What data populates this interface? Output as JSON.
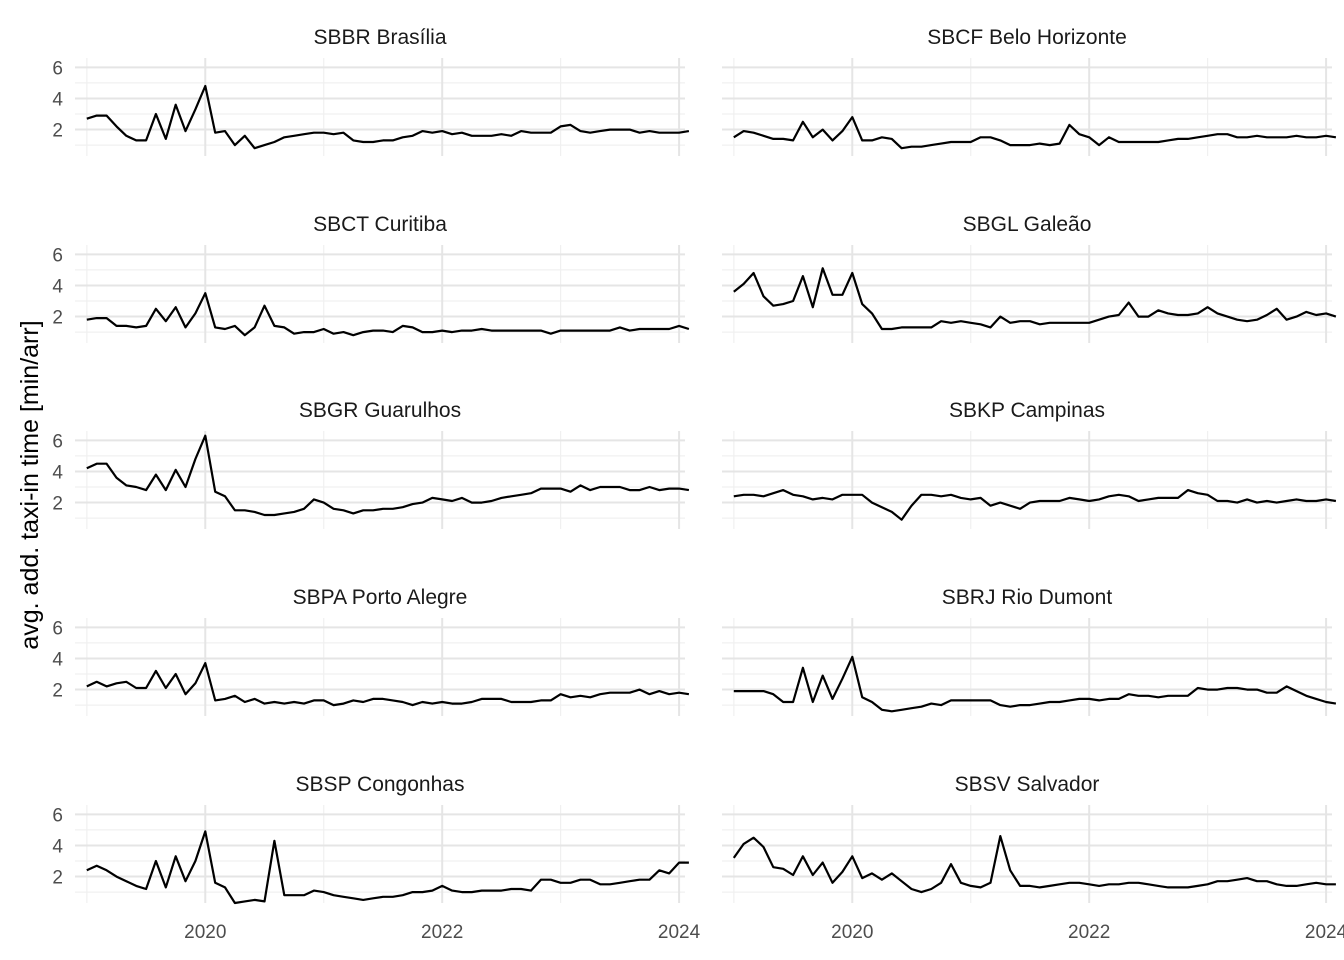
{
  "chart_data": {
    "type": "line",
    "ylabel": "avg. add. taxi-in time [min/arr]",
    "xlabel": "",
    "xlim": [
      2018.9,
      2024.05
    ],
    "ylim": [
      0.3,
      6.6
    ],
    "x_ticks": [
      2020,
      2022,
      2024
    ],
    "x_tick_labels": [
      "2020",
      "2022",
      "2024"
    ],
    "y_ticks": [
      2,
      4,
      6
    ],
    "y_tick_labels": [
      "2",
      "4",
      "6"
    ],
    "x_start": 2019.0,
    "x_step": 0.083333,
    "panels": [
      {
        "title": "SBBR Brasília",
        "values": [
          2.7,
          2.9,
          2.9,
          2.2,
          1.6,
          1.3,
          1.3,
          3.0,
          1.4,
          3.6,
          1.9,
          3.3,
          4.8,
          1.8,
          1.9,
          1.0,
          1.6,
          0.8,
          1.0,
          1.2,
          1.5,
          1.6,
          1.7,
          1.8,
          1.8,
          1.7,
          1.8,
          1.3,
          1.2,
          1.2,
          1.3,
          1.3,
          1.5,
          1.6,
          1.9,
          1.8,
          1.9,
          1.7,
          1.8,
          1.6,
          1.6,
          1.6,
          1.7,
          1.6,
          1.9,
          1.8,
          1.8,
          1.8,
          2.2,
          2.3,
          1.9,
          1.8,
          1.9,
          2.0,
          2.0,
          2.0,
          1.8,
          1.9,
          1.8,
          1.8,
          1.8,
          1.9
        ]
      },
      {
        "title": "SBCF Belo Horizonte",
        "values": [
          1.5,
          1.9,
          1.8,
          1.6,
          1.4,
          1.4,
          1.3,
          2.5,
          1.5,
          2.0,
          1.3,
          1.9,
          2.8,
          1.3,
          1.3,
          1.5,
          1.4,
          0.8,
          0.9,
          0.9,
          1.0,
          1.1,
          1.2,
          1.2,
          1.2,
          1.5,
          1.5,
          1.3,
          1.0,
          1.0,
          1.0,
          1.1,
          1.0,
          1.1,
          2.3,
          1.7,
          1.5,
          1.0,
          1.5,
          1.2,
          1.2,
          1.2,
          1.2,
          1.2,
          1.3,
          1.4,
          1.4,
          1.5,
          1.6,
          1.7,
          1.7,
          1.5,
          1.5,
          1.6,
          1.5,
          1.5,
          1.5,
          1.6,
          1.5,
          1.5,
          1.6,
          1.5
        ]
      },
      {
        "title": "SBCT Curitiba",
        "values": [
          1.8,
          1.9,
          1.9,
          1.4,
          1.4,
          1.3,
          1.4,
          2.5,
          1.7,
          2.6,
          1.3,
          2.2,
          3.5,
          1.3,
          1.2,
          1.4,
          0.8,
          1.3,
          2.7,
          1.4,
          1.3,
          0.9,
          1.0,
          1.0,
          1.2,
          0.9,
          1.0,
          0.8,
          1.0,
          1.1,
          1.1,
          1.0,
          1.4,
          1.3,
          1.0,
          1.0,
          1.1,
          1.0,
          1.1,
          1.1,
          1.2,
          1.1,
          1.1,
          1.1,
          1.1,
          1.1,
          1.1,
          0.9,
          1.1,
          1.1,
          1.1,
          1.1,
          1.1,
          1.1,
          1.3,
          1.1,
          1.2,
          1.2,
          1.2,
          1.2,
          1.4,
          1.2
        ]
      },
      {
        "title": "SBGL Galeão",
        "values": [
          3.6,
          4.1,
          4.8,
          3.3,
          2.7,
          2.8,
          3.0,
          4.6,
          2.6,
          5.1,
          3.4,
          3.4,
          4.8,
          2.8,
          2.2,
          1.2,
          1.2,
          1.3,
          1.3,
          1.3,
          1.3,
          1.7,
          1.6,
          1.7,
          1.6,
          1.5,
          1.3,
          2.0,
          1.6,
          1.7,
          1.7,
          1.5,
          1.6,
          1.6,
          1.6,
          1.6,
          1.6,
          1.8,
          2.0,
          2.1,
          2.9,
          2.0,
          2.0,
          2.4,
          2.2,
          2.1,
          2.1,
          2.2,
          2.6,
          2.2,
          2.0,
          1.8,
          1.7,
          1.8,
          2.1,
          2.5,
          1.8,
          2.0,
          2.3,
          2.1,
          2.2,
          2.0
        ]
      },
      {
        "title": "SBGR Guarulhos",
        "values": [
          4.2,
          4.5,
          4.5,
          3.6,
          3.1,
          3.0,
          2.8,
          3.8,
          2.8,
          4.1,
          3.0,
          4.8,
          6.3,
          2.7,
          2.4,
          1.5,
          1.5,
          1.4,
          1.2,
          1.2,
          1.3,
          1.4,
          1.6,
          2.2,
          2.0,
          1.6,
          1.5,
          1.3,
          1.5,
          1.5,
          1.6,
          1.6,
          1.7,
          1.9,
          2.0,
          2.3,
          2.2,
          2.1,
          2.3,
          2.0,
          2.0,
          2.1,
          2.3,
          2.4,
          2.5,
          2.6,
          2.9,
          2.9,
          2.9,
          2.7,
          3.1,
          2.8,
          3.0,
          3.0,
          3.0,
          2.8,
          2.8,
          3.0,
          2.8,
          2.9,
          2.9,
          2.8
        ]
      },
      {
        "title": "SBKP Campinas",
        "values": [
          2.4,
          2.5,
          2.5,
          2.4,
          2.6,
          2.8,
          2.5,
          2.4,
          2.2,
          2.3,
          2.2,
          2.5,
          2.5,
          2.5,
          2.0,
          1.7,
          1.4,
          0.9,
          1.8,
          2.5,
          2.5,
          2.4,
          2.5,
          2.3,
          2.2,
          2.3,
          1.8,
          2.0,
          1.8,
          1.6,
          2.0,
          2.1,
          2.1,
          2.1,
          2.3,
          2.2,
          2.1,
          2.2,
          2.4,
          2.5,
          2.4,
          2.1,
          2.2,
          2.3,
          2.3,
          2.3,
          2.8,
          2.6,
          2.5,
          2.1,
          2.1,
          2.0,
          2.2,
          2.0,
          2.1,
          2.0,
          2.1,
          2.2,
          2.1,
          2.1,
          2.2,
          2.1
        ]
      },
      {
        "title": "SBPA Porto Alegre",
        "values": [
          2.2,
          2.5,
          2.2,
          2.4,
          2.5,
          2.1,
          2.1,
          3.2,
          2.1,
          3.0,
          1.7,
          2.4,
          3.7,
          1.3,
          1.4,
          1.6,
          1.2,
          1.4,
          1.1,
          1.2,
          1.1,
          1.2,
          1.1,
          1.3,
          1.3,
          1.0,
          1.1,
          1.3,
          1.2,
          1.4,
          1.4,
          1.3,
          1.2,
          1.0,
          1.2,
          1.1,
          1.2,
          1.1,
          1.1,
          1.2,
          1.4,
          1.4,
          1.4,
          1.2,
          1.2,
          1.2,
          1.3,
          1.3,
          1.7,
          1.5,
          1.6,
          1.5,
          1.7,
          1.8,
          1.8,
          1.8,
          2.0,
          1.7,
          1.9,
          1.7,
          1.8,
          1.7
        ]
      },
      {
        "title": "SBRJ Rio Dumont",
        "values": [
          1.9,
          1.9,
          1.9,
          1.9,
          1.7,
          1.2,
          1.2,
          3.4,
          1.2,
          2.9,
          1.4,
          2.7,
          4.1,
          1.5,
          1.2,
          0.7,
          0.6,
          0.7,
          0.8,
          0.9,
          1.1,
          1.0,
          1.3,
          1.3,
          1.3,
          1.3,
          1.3,
          1.0,
          0.9,
          1.0,
          1.0,
          1.1,
          1.2,
          1.2,
          1.3,
          1.4,
          1.4,
          1.3,
          1.4,
          1.4,
          1.7,
          1.6,
          1.6,
          1.5,
          1.6,
          1.6,
          1.6,
          2.1,
          2.0,
          2.0,
          2.1,
          2.1,
          2.0,
          2.0,
          1.8,
          1.8,
          2.2,
          1.9,
          1.6,
          1.4,
          1.2,
          1.1
        ]
      },
      {
        "title": "SBSP Congonhas",
        "values": [
          2.4,
          2.7,
          2.4,
          2.0,
          1.7,
          1.4,
          1.2,
          3.0,
          1.3,
          3.3,
          1.7,
          3.0,
          4.9,
          1.6,
          1.3,
          0.3,
          0.4,
          0.5,
          0.4,
          4.3,
          0.8,
          0.8,
          0.8,
          1.1,
          1.0,
          0.8,
          0.7,
          0.6,
          0.5,
          0.6,
          0.7,
          0.7,
          0.8,
          1.0,
          1.0,
          1.1,
          1.4,
          1.1,
          1.0,
          1.0,
          1.1,
          1.1,
          1.1,
          1.2,
          1.2,
          1.1,
          1.8,
          1.8,
          1.6,
          1.6,
          1.8,
          1.8,
          1.5,
          1.5,
          1.6,
          1.7,
          1.8,
          1.8,
          2.4,
          2.2,
          2.9,
          2.9
        ]
      },
      {
        "title": "SBSV Salvador",
        "values": [
          3.2,
          4.1,
          4.5,
          3.9,
          2.6,
          2.5,
          2.1,
          3.3,
          2.1,
          2.9,
          1.6,
          2.3,
          3.3,
          1.9,
          2.2,
          1.8,
          2.2,
          1.7,
          1.2,
          1.0,
          1.2,
          1.6,
          2.8,
          1.6,
          1.4,
          1.3,
          1.6,
          4.6,
          2.4,
          1.4,
          1.4,
          1.3,
          1.4,
          1.5,
          1.6,
          1.6,
          1.5,
          1.4,
          1.5,
          1.5,
          1.6,
          1.6,
          1.5,
          1.4,
          1.3,
          1.3,
          1.3,
          1.4,
          1.5,
          1.7,
          1.7,
          1.8,
          1.9,
          1.7,
          1.7,
          1.5,
          1.4,
          1.4,
          1.5,
          1.6,
          1.5,
          1.5
        ]
      }
    ]
  }
}
